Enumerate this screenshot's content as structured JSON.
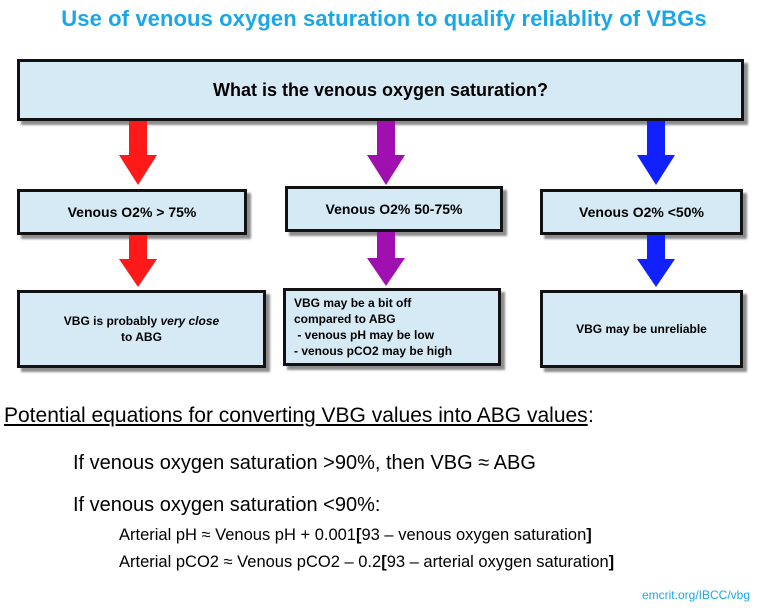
{
  "title": "Use of venous oxygen saturation to qualify reliablity of VBGs",
  "question": "What is the venous oxygen saturation?",
  "colors": {
    "title": "#1aa7e8",
    "red": "#ff1a1a",
    "purple": "#a010b0",
    "blue": "#1020ff",
    "box_fill": "#d6eaf5"
  },
  "branches": [
    {
      "id": "high",
      "arrow_color": "red",
      "range_label": "Venous O2% > 75%",
      "outcome_pre": "VBG is probably ",
      "outcome_emphasis": "very close",
      "outcome_post": "to ABG"
    },
    {
      "id": "mid",
      "arrow_color": "purple",
      "range_label": "Venous O2% 50-75%",
      "outcome_lines": [
        "VBG may be a bit off",
        "compared to ABG",
        " - venous pH may be low",
        "- venous pCO2 may be high"
      ]
    },
    {
      "id": "low",
      "arrow_color": "blue",
      "range_label": "Venous O2% <50%",
      "outcome": "VBG may be unreliable"
    }
  ],
  "equations": {
    "heading": "Potential equations for converting VBG values into ABG values",
    "heading_colon": ":",
    "rule_above_90": "If venous oxygen saturation >90%, then VBG ≈ ABG",
    "rule_below_90": "If venous oxygen saturation <90%:",
    "ph_formula_a": "Arterial pH ≈ Venous pH + 0.001",
    "ph_formula_open": "[",
    "ph_formula_b": "93 – venous oxygen saturation",
    "ph_formula_close": "]",
    "pco2_formula_a": "Arterial pCO2 ≈ Venous pCO2 – 0.2",
    "pco2_formula_open": "[",
    "pco2_formula_b": "93 – arterial oxygen saturation",
    "pco2_formula_close": "]"
  },
  "credit": "emcrit.org/IBCC/vbg"
}
